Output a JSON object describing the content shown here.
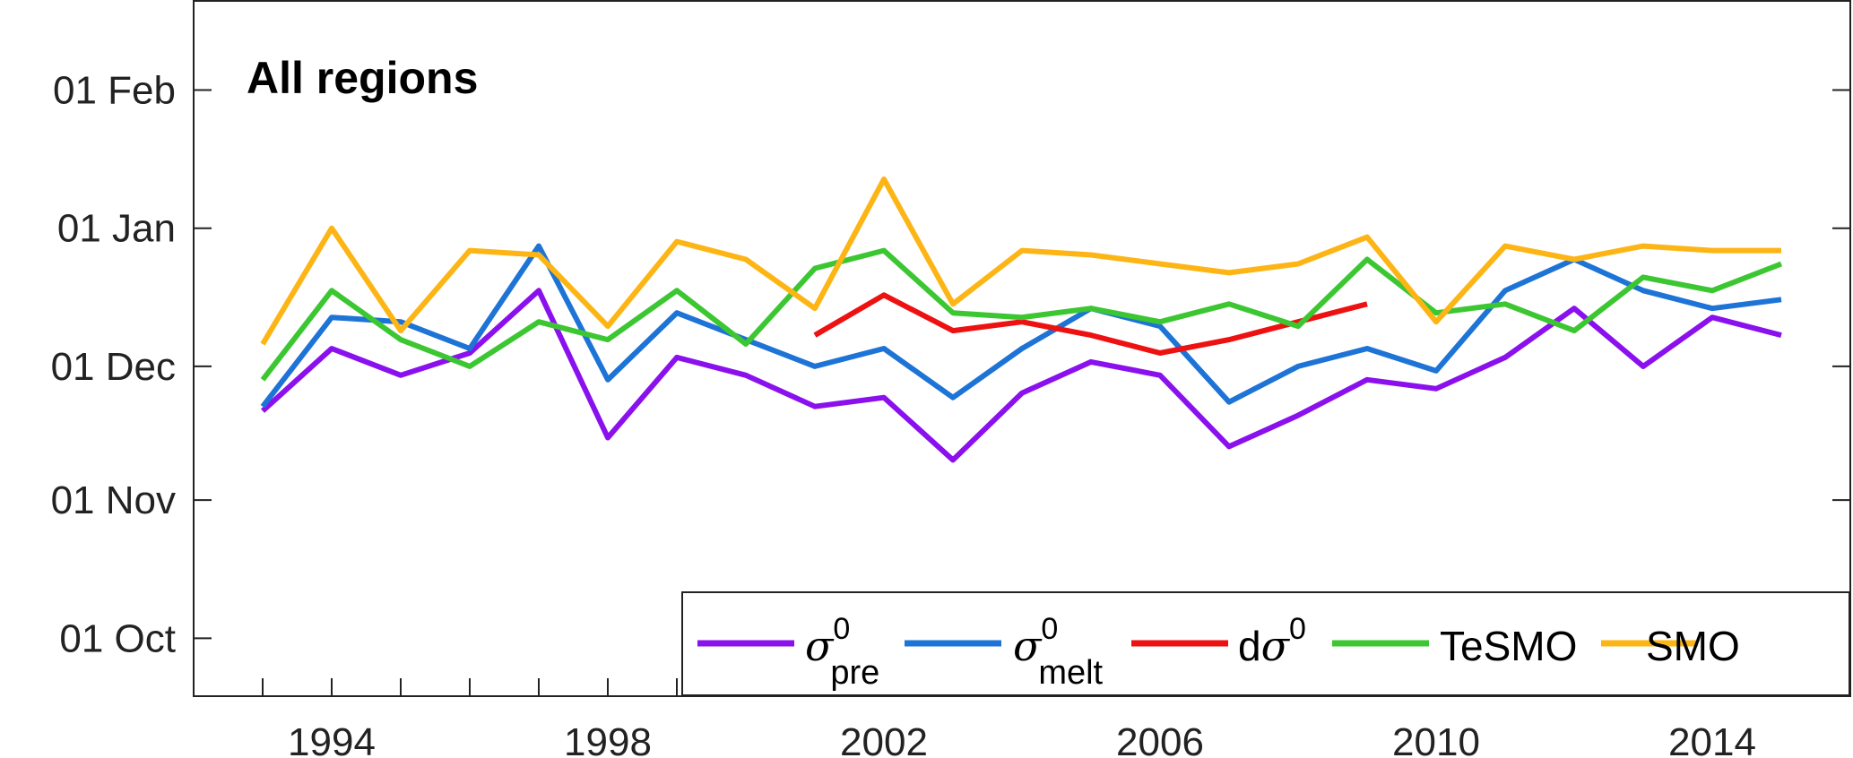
{
  "chart_data": {
    "type": "line",
    "title": "All regions",
    "xlabel": "",
    "ylabel": "",
    "x_label_ticks": [
      "1994",
      "1998",
      "2002",
      "2006",
      "2010",
      "2014"
    ],
    "x_minor_tick_years": [
      1993,
      1994,
      1995,
      1996,
      1997,
      1998,
      1999,
      2000,
      2001,
      2002,
      2003,
      2004,
      2005,
      2006,
      2007,
      2008,
      2009,
      2010,
      2011,
      2012,
      2013,
      2014,
      2015
    ],
    "xlim": [
      "1992",
      "2016"
    ],
    "y_ticks": [
      {
        "label": "01 Oct",
        "date": "Oct 1"
      },
      {
        "label": "01 Nov",
        "date": "Nov 1"
      },
      {
        "label": "01 Dec",
        "date": "Dec 1"
      },
      {
        "label": "01 Jan",
        "date": "Jan 1"
      },
      {
        "label": "01 Feb",
        "date": "Feb 1"
      }
    ],
    "ylim": [
      "Sep 18",
      "Feb 21"
    ],
    "grid": false,
    "legend_position": "bottom-right",
    "series": [
      {
        "key": "sigma_pre",
        "name_symbol": "σ",
        "name_sup": "0",
        "name_sub": "pre",
        "color": "#8B10EE",
        "points": [
          [
            "1993",
            "Nov 21"
          ],
          [
            "1994",
            "Dec 5"
          ],
          [
            "1995",
            "Nov 29"
          ],
          [
            "1996",
            "Dec 4"
          ],
          [
            "1997",
            "Dec 18"
          ],
          [
            "1998",
            "Nov 15"
          ],
          [
            "1999",
            "Dec 3"
          ],
          [
            "2000",
            "Nov 29"
          ],
          [
            "2001",
            "Nov 22"
          ],
          [
            "2002",
            "Nov 24"
          ],
          [
            "2003",
            "Nov 10"
          ],
          [
            "2004",
            "Nov 25"
          ],
          [
            "2005",
            "Dec 2"
          ],
          [
            "2006",
            "Nov 29"
          ],
          [
            "2007",
            "Nov 13"
          ],
          [
            "2008",
            "Nov 20"
          ],
          [
            "2009",
            "Nov 28"
          ],
          [
            "2010",
            "Nov 26"
          ],
          [
            "2011",
            "Dec 3"
          ],
          [
            "2012",
            "Dec 14"
          ],
          [
            "2013",
            "Dec 1"
          ],
          [
            "2014",
            "Dec 12"
          ],
          [
            "2015",
            "Dec 8"
          ]
        ]
      },
      {
        "key": "sigma_melt",
        "name_symbol": "σ",
        "name_sup": "0",
        "name_sub": "melt",
        "color": "#1D74D6",
        "points": [
          [
            "1993",
            "Nov 22"
          ],
          [
            "1994",
            "Dec 12"
          ],
          [
            "1995",
            "Dec 11"
          ],
          [
            "1996",
            "Dec 5"
          ],
          [
            "1997",
            "Dec 28"
          ],
          [
            "1998",
            "Nov 28"
          ],
          [
            "1999",
            "Dec 13"
          ],
          [
            "2000",
            "Dec 7"
          ],
          [
            "2001",
            "Dec 1"
          ],
          [
            "2002",
            "Dec 5"
          ],
          [
            "2003",
            "Nov 24"
          ],
          [
            "2004",
            "Dec 5"
          ],
          [
            "2005",
            "Dec 14"
          ],
          [
            "2006",
            "Dec 10"
          ],
          [
            "2007",
            "Nov 23"
          ],
          [
            "2008",
            "Dec 1"
          ],
          [
            "2009",
            "Dec 5"
          ],
          [
            "2010",
            "Nov 30"
          ],
          [
            "2011",
            "Dec 18"
          ],
          [
            "2012",
            "Dec 25"
          ],
          [
            "2013",
            "Dec 18"
          ],
          [
            "2014",
            "Dec 14"
          ],
          [
            "2015",
            "Dec 16"
          ]
        ]
      },
      {
        "key": "d_sigma",
        "name_prefix": "d",
        "name_symbol": "σ",
        "name_sup": "0",
        "color": "#EE1111",
        "points": [
          [
            "2001",
            "Dec 8"
          ],
          [
            "2002",
            "Dec 17"
          ],
          [
            "2003",
            "Dec 9"
          ],
          [
            "2004",
            "Dec 11"
          ],
          [
            "2005",
            "Dec 8"
          ],
          [
            "2006",
            "Dec 4"
          ],
          [
            "2007",
            "Dec 7"
          ],
          [
            "2008",
            "Dec 11"
          ],
          [
            "2009",
            "Dec 15"
          ]
        ]
      },
      {
        "key": "tesmo",
        "name": "TeSMO",
        "color": "#3CC732",
        "points": [
          [
            "1993",
            "Nov 28"
          ],
          [
            "1994",
            "Dec 18"
          ],
          [
            "1995",
            "Dec 7"
          ],
          [
            "1996",
            "Dec 1"
          ],
          [
            "1997",
            "Dec 11"
          ],
          [
            "1998",
            "Dec 7"
          ],
          [
            "1999",
            "Dec 18"
          ],
          [
            "2000",
            "Dec 6"
          ],
          [
            "2001",
            "Dec 23"
          ],
          [
            "2002",
            "Dec 27"
          ],
          [
            "2003",
            "Dec 13"
          ],
          [
            "2004",
            "Dec 12"
          ],
          [
            "2005",
            "Dec 14"
          ],
          [
            "2006",
            "Dec 11"
          ],
          [
            "2007",
            "Dec 15"
          ],
          [
            "2008",
            "Dec 10"
          ],
          [
            "2009",
            "Dec 25"
          ],
          [
            "2010",
            "Dec 13"
          ],
          [
            "2011",
            "Dec 15"
          ],
          [
            "2012",
            "Dec 9"
          ],
          [
            "2013",
            "Dec 21"
          ],
          [
            "2014",
            "Dec 18"
          ],
          [
            "2015",
            "Dec 24"
          ]
        ]
      },
      {
        "key": "smo",
        "name": "SMO",
        "color": "#FDB515",
        "points": [
          [
            "1993",
            "Dec 6"
          ],
          [
            "1994",
            "Jan 1"
          ],
          [
            "1995",
            "Dec 9"
          ],
          [
            "1996",
            "Dec 27"
          ],
          [
            "1997",
            "Dec 26"
          ],
          [
            "1998",
            "Dec 10"
          ],
          [
            "1999",
            "Dec 29"
          ],
          [
            "2000",
            "Dec 25"
          ],
          [
            "2001",
            "Dec 14"
          ],
          [
            "2002",
            "Jan 12"
          ],
          [
            "2003",
            "Dec 15"
          ],
          [
            "2004",
            "Dec 27"
          ],
          [
            "2005",
            "Dec 26"
          ],
          [
            "2006",
            "Dec 24"
          ],
          [
            "2007",
            "Dec 22"
          ],
          [
            "2008",
            "Dec 24"
          ],
          [
            "2009",
            "Dec 30"
          ],
          [
            "2010",
            "Dec 11"
          ],
          [
            "2011",
            "Dec 28"
          ],
          [
            "2012",
            "Dec 25"
          ],
          [
            "2013",
            "Dec 28"
          ],
          [
            "2014",
            "Dec 27"
          ],
          [
            "2015",
            "Dec 27"
          ]
        ]
      }
    ]
  }
}
